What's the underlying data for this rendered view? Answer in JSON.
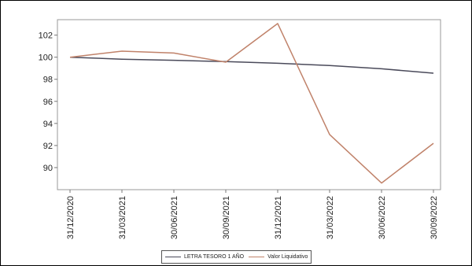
{
  "chart_data": {
    "type": "line",
    "x": [
      "31/12/2020",
      "31/03/2021",
      "30/06/2021",
      "30/09/2021",
      "31/12/2021",
      "31/03/2022",
      "30/06/2022",
      "30/09/2022"
    ],
    "series": [
      {
        "name": "LETRA TESORO 1 AÑO",
        "color": "#4a4a5a",
        "values": [
          100.0,
          99.82,
          99.72,
          99.6,
          99.45,
          99.25,
          98.95,
          98.55
        ]
      },
      {
        "name": "Valor Liquidativo",
        "color": "#c0826a",
        "values": [
          100.0,
          100.55,
          100.38,
          99.55,
          103.05,
          93.0,
          88.6,
          92.2
        ]
      }
    ],
    "y_ticks": [
      "90",
      "92",
      "94",
      "96",
      "98",
      "100",
      "102"
    ],
    "ylim": [
      88.0,
      103.4
    ],
    "grid": false,
    "legend_position": "bottom-center",
    "title": "",
    "xlabel": "",
    "ylabel": ""
  }
}
